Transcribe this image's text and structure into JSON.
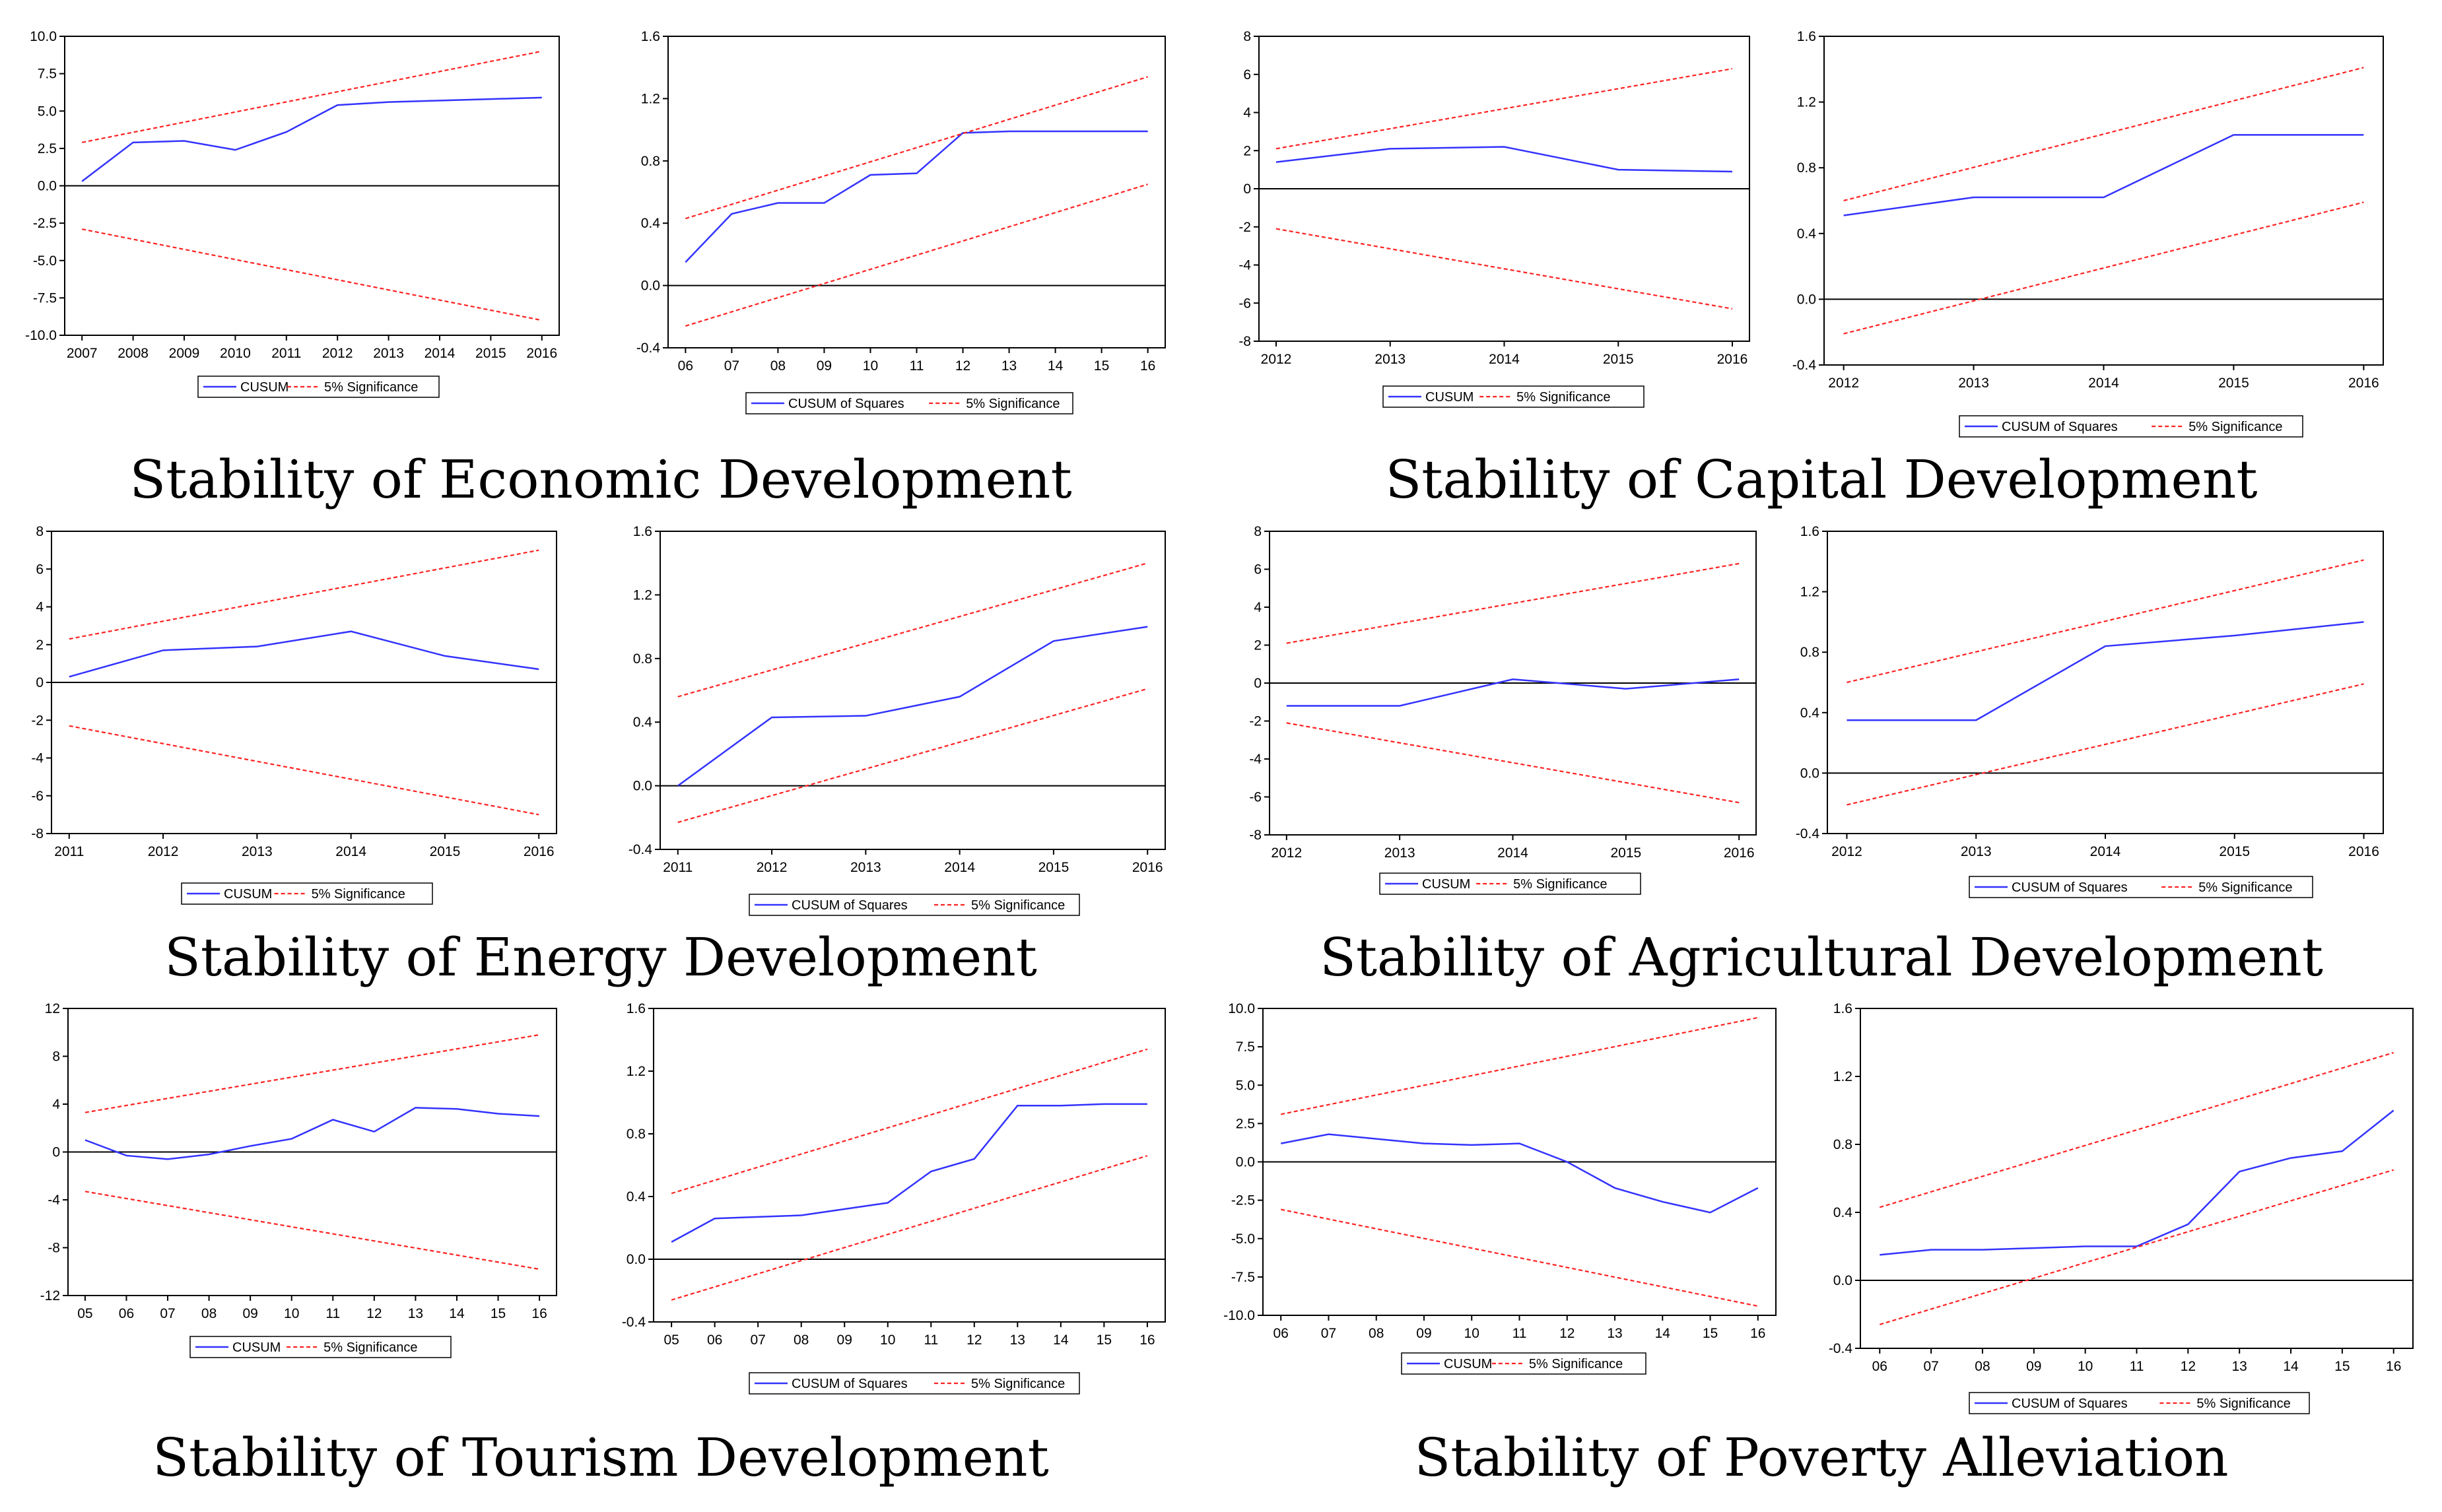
{
  "colors": {
    "cusum": "#3333ff",
    "bound": "#ff2222",
    "axis": "#000000",
    "frame": "#000000"
  },
  "captions": [
    "Stability of Economic Development",
    "Stability of Capital Development",
    "Stability of Energy Development",
    "Stability of Agricultural Development",
    "Stability of Tourism Development",
    "Stability of Poverty Alleviation"
  ],
  "chart_data": [
    {
      "type": "line",
      "title": "CUSUM - Economic Development",
      "categories": [
        "2007",
        "2008",
        "2009",
        "2010",
        "2011",
        "2012",
        "2013",
        "2014",
        "2015",
        "2016"
      ],
      "yticks": [
        "10.0",
        "7.5",
        "5.0",
        "2.5",
        "0.0",
        "-2.5",
        "-5.0",
        "-7.5",
        "-10.0"
      ],
      "ylim": [
        -10,
        10
      ],
      "series": [
        {
          "name": "CUSUM",
          "values": [
            0.3,
            2.9,
            3.0,
            2.4,
            3.6,
            5.4,
            5.6,
            5.7,
            5.8,
            5.9
          ]
        },
        {
          "name": "5% Significance",
          "line": [
            [
              2007,
              2.9
            ],
            [
              2016,
              9.0
            ]
          ]
        },
        {
          "name": "5% Significance",
          "line": [
            [
              2007,
              -2.9
            ],
            [
              2016,
              -9.0
            ]
          ]
        }
      ],
      "legend": [
        "CUSUM",
        "5% Significance"
      ]
    },
    {
      "type": "line",
      "title": "CUSUM of Squares - Economic Development",
      "categories": [
        "06",
        "07",
        "08",
        "09",
        "10",
        "11",
        "12",
        "13",
        "14",
        "15",
        "16"
      ],
      "yticks": [
        "1.6",
        "1.2",
        "0.8",
        "0.4",
        "0.0",
        "-0.4"
      ],
      "ylim": [
        -0.4,
        1.6
      ],
      "series": [
        {
          "name": "CUSUM of Squares",
          "values": [
            0.15,
            0.46,
            0.53,
            0.53,
            0.71,
            0.72,
            0.98,
            0.99,
            0.99,
            0.99,
            0.99
          ]
        },
        {
          "name": "5% Significance",
          "line": [
            [
              6,
              0.43
            ],
            [
              16,
              1.34
            ]
          ]
        },
        {
          "name": "5% Significance",
          "line": [
            [
              6,
              -0.26
            ],
            [
              16,
              0.65
            ]
          ]
        }
      ],
      "legend": [
        "CUSUM of Squares",
        "5% Significance"
      ]
    },
    {
      "type": "line",
      "title": "CUSUM - Capital Development",
      "categories": [
        "2012",
        "2013",
        "2014",
        "2015",
        "2016"
      ],
      "yticks": [
        "8",
        "6",
        "4",
        "2",
        "0",
        "-2",
        "-4",
        "-6",
        "-8"
      ],
      "ylim": [
        -8,
        8
      ],
      "series": [
        {
          "name": "CUSUM",
          "values": [
            1.4,
            2.1,
            2.2,
            1.0,
            0.9
          ]
        },
        {
          "name": "5% Significance",
          "line": [
            [
              2012,
              2.1
            ],
            [
              2016,
              6.3
            ]
          ]
        },
        {
          "name": "5% Significance",
          "line": [
            [
              2012,
              -2.1
            ],
            [
              2016,
              -6.3
            ]
          ]
        }
      ],
      "legend": [
        "CUSUM",
        "5% Significance"
      ]
    },
    {
      "type": "line",
      "title": "CUSUM of Squares - Capital Development",
      "categories": [
        "2012",
        "2013",
        "2014",
        "2015",
        "2016"
      ],
      "yticks": [
        "1.6",
        "1.2",
        "0.8",
        "0.4",
        "0.0",
        "-0.4"
      ],
      "ylim": [
        -0.4,
        1.6
      ],
      "series": [
        {
          "name": "CUSUM of Squares",
          "values": [
            0.51,
            0.62,
            0.62,
            1.0,
            1.0
          ]
        },
        {
          "name": "5% Significance",
          "line": [
            [
              2012,
              0.6
            ],
            [
              2016,
              1.41
            ]
          ]
        },
        {
          "name": "5% Significance",
          "line": [
            [
              2012,
              -0.21
            ],
            [
              2016,
              0.59
            ]
          ]
        }
      ],
      "legend": [
        "CUSUM of Squares",
        "5% Significance"
      ]
    },
    {
      "type": "line",
      "title": "CUSUM - Energy Development",
      "categories": [
        "2011",
        "2012",
        "2013",
        "2014",
        "2015",
        "2016"
      ],
      "yticks": [
        "8",
        "6",
        "4",
        "2",
        "0",
        "-2",
        "-4",
        "-6",
        "-8"
      ],
      "ylim": [
        -8,
        8
      ],
      "series": [
        {
          "name": "CUSUM",
          "values": [
            0.3,
            1.7,
            1.9,
            2.7,
            1.4,
            0.7
          ]
        },
        {
          "name": "5% Significance",
          "line": [
            [
              2011,
              2.3
            ],
            [
              2016,
              7.0
            ]
          ]
        },
        {
          "name": "5% Significance",
          "line": [
            [
              2011,
              -2.3
            ],
            [
              2016,
              -7.0
            ]
          ]
        }
      ],
      "legend": [
        "CUSUM",
        "5% Significance"
      ]
    },
    {
      "type": "line",
      "title": "CUSUM of Squares - Energy Development",
      "categories": [
        "2011",
        "2012",
        "2013",
        "2014",
        "2015",
        "2016"
      ],
      "yticks": [
        "1.6",
        "1.2",
        "0.8",
        "0.4",
        "0.0",
        "-0.4"
      ],
      "ylim": [
        -0.4,
        1.6
      ],
      "series": [
        {
          "name": "CUSUM of Squares",
          "values": [
            0.0,
            0.43,
            0.44,
            0.56,
            0.91,
            1.0
          ]
        },
        {
          "name": "5% Significance",
          "line": [
            [
              2011,
              0.56
            ],
            [
              2016,
              1.4
            ]
          ]
        },
        {
          "name": "5% Significance",
          "line": [
            [
              2011,
              -0.23
            ],
            [
              2016,
              0.61
            ]
          ]
        }
      ],
      "legend": [
        "CUSUM of Squares",
        "5% Significance"
      ]
    },
    {
      "type": "line",
      "title": "CUSUM - Agricultural Development",
      "categories": [
        "2012",
        "2013",
        "2014",
        "2015",
        "2016"
      ],
      "yticks": [
        "8",
        "6",
        "4",
        "2",
        "0",
        "-2",
        "-4",
        "-6",
        "-8"
      ],
      "ylim": [
        -8,
        8
      ],
      "series": [
        {
          "name": "CUSUM",
          "values": [
            -1.2,
            -1.2,
            0.2,
            -0.3,
            0.2
          ]
        },
        {
          "name": "5% Significance",
          "line": [
            [
              2012,
              2.1
            ],
            [
              2016,
              6.3
            ]
          ]
        },
        {
          "name": "5% Significance",
          "line": [
            [
              2012,
              -2.1
            ],
            [
              2016,
              -6.3
            ]
          ]
        }
      ],
      "legend": [
        "CUSUM",
        "5% Significance"
      ]
    },
    {
      "type": "line",
      "title": "CUSUM of Squares - Agricultural Development",
      "categories": [
        "2012",
        "2013",
        "2014",
        "2015",
        "2016"
      ],
      "yticks": [
        "1.6",
        "1.2",
        "0.8",
        "0.4",
        "0.0",
        "-0.4"
      ],
      "ylim": [
        -0.4,
        1.6
      ],
      "series": [
        {
          "name": "CUSUM of Squares",
          "values": [
            0.35,
            0.35,
            0.84,
            0.91,
            1.0
          ]
        },
        {
          "name": "5% Significance",
          "line": [
            [
              2012,
              0.6
            ],
            [
              2016,
              1.41
            ]
          ]
        },
        {
          "name": "5% Significance",
          "line": [
            [
              2012,
              -0.21
            ],
            [
              2016,
              0.59
            ]
          ]
        }
      ],
      "legend": [
        "CUSUM of Squares",
        "5% Significance"
      ]
    },
    {
      "type": "line",
      "title": "CUSUM - Tourism Development",
      "categories": [
        "05",
        "06",
        "07",
        "08",
        "09",
        "10",
        "11",
        "12",
        "13",
        "14",
        "15",
        "16"
      ],
      "yticks": [
        "12",
        "8",
        "4",
        "0",
        "-4",
        "-8",
        "-12"
      ],
      "ylim": [
        -12,
        12
      ],
      "series": [
        {
          "name": "CUSUM",
          "values": [
            1.0,
            -0.3,
            -0.6,
            -0.2,
            0.5,
            1.1,
            2.7,
            1.7,
            3.7,
            3.6,
            3.2,
            3.0
          ]
        },
        {
          "name": "5% Significance",
          "line": [
            [
              5,
              3.3
            ],
            [
              16,
              9.8
            ]
          ]
        },
        {
          "name": "5% Significance",
          "line": [
            [
              5,
              -3.3
            ],
            [
              16,
              -9.8
            ]
          ]
        }
      ],
      "legend": [
        "CUSUM",
        "5% Significance"
      ]
    },
    {
      "type": "line",
      "title": "CUSUM of Squares - Tourism Development",
      "categories": [
        "05",
        "06",
        "07",
        "08",
        "09",
        "10",
        "11",
        "12",
        "13",
        "14",
        "15",
        "16"
      ],
      "yticks": [
        "1.6",
        "1.2",
        "0.8",
        "0.4",
        "0.0",
        "-0.4"
      ],
      "ylim": [
        -0.4,
        1.6
      ],
      "series": [
        {
          "name": "CUSUM of Squares",
          "values": [
            0.11,
            0.26,
            0.27,
            0.28,
            0.32,
            0.36,
            0.56,
            0.64,
            0.98,
            0.98,
            0.99,
            0.99
          ]
        },
        {
          "name": "5% Significance",
          "line": [
            [
              5,
              0.42
            ],
            [
              16,
              1.34
            ]
          ]
        },
        {
          "name": "5% Significance",
          "line": [
            [
              5,
              -0.26
            ],
            [
              16,
              0.66
            ]
          ]
        }
      ],
      "legend": [
        "CUSUM of Squares",
        "5% Significance"
      ]
    },
    {
      "type": "line",
      "title": "CUSUM - Poverty Alleviation",
      "categories": [
        "06",
        "07",
        "08",
        "09",
        "10",
        "11",
        "12",
        "13",
        "14",
        "15",
        "16"
      ],
      "yticks": [
        "10.0",
        "7.5",
        "5.0",
        "2.5",
        "0.0",
        "-2.5",
        "-5.0",
        "-7.5",
        "-10.0"
      ],
      "ylim": [
        -10,
        10
      ],
      "series": [
        {
          "name": "CUSUM",
          "values": [
            1.2,
            1.8,
            1.5,
            1.2,
            1.1,
            1.2,
            0.0,
            -1.7,
            -2.6,
            -3.3,
            -1.7
          ]
        },
        {
          "name": "5% Significance",
          "line": [
            [
              6,
              3.1
            ],
            [
              16,
              9.4
            ]
          ]
        },
        {
          "name": "5% Significance",
          "line": [
            [
              6,
              -3.1
            ],
            [
              16,
              -9.4
            ]
          ]
        }
      ],
      "legend": [
        "CUSUM",
        "5% Significance"
      ]
    },
    {
      "type": "line",
      "title": "CUSUM of Squares - Poverty Alleviation",
      "categories": [
        "06",
        "07",
        "08",
        "09",
        "10",
        "11",
        "12",
        "13",
        "14",
        "15",
        "16"
      ],
      "yticks": [
        "1.6",
        "1.2",
        "0.8",
        "0.4",
        "0.0",
        "-0.4"
      ],
      "ylim": [
        -0.4,
        1.6
      ],
      "series": [
        {
          "name": "CUSUM of Squares",
          "values": [
            0.15,
            0.18,
            0.18,
            0.19,
            0.2,
            0.2,
            0.33,
            0.64,
            0.72,
            0.76,
            1.0
          ]
        },
        {
          "name": "5% Significance",
          "line": [
            [
              6,
              0.43
            ],
            [
              16,
              1.34
            ]
          ]
        },
        {
          "name": "5% Significance",
          "line": [
            [
              6,
              -0.26
            ],
            [
              16,
              0.65
            ]
          ]
        }
      ],
      "legend": [
        "CUSUM of Squares",
        "5% Significance"
      ]
    }
  ]
}
